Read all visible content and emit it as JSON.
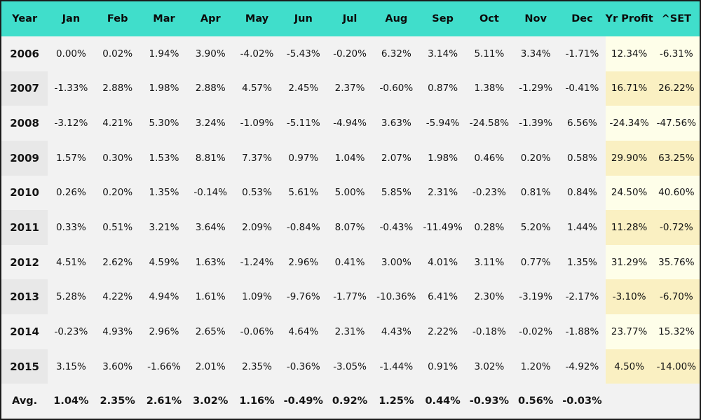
{
  "colors": {
    "header_bg": "#40DECB",
    "body_bg": "#F2F2F2",
    "year_shade": "#E8E8E8",
    "yellow_light": "#FEFEE9",
    "yellow_dark": "#FAF0C2",
    "border": "#1C1C1C",
    "text": "#141414"
  },
  "chart_data": {
    "type": "table",
    "columns": [
      "Year",
      "Jan",
      "Feb",
      "Mar",
      "Apr",
      "May",
      "Jun",
      "Jul",
      "Aug",
      "Sep",
      "Oct",
      "Nov",
      "Dec",
      "Yr Profit",
      "^SET"
    ],
    "rows": [
      {
        "label": "2006",
        "monthly": [
          "0.00%",
          "0.02%",
          "1.94%",
          "3.90%",
          "-4.02%",
          "-5.43%",
          "-0.20%",
          "6.32%",
          "3.14%",
          "5.11%",
          "3.34%",
          "-1.71%"
        ],
        "yr_profit": "12.34%",
        "set": "-6.31%"
      },
      {
        "label": "2007",
        "monthly": [
          "-1.33%",
          "2.88%",
          "1.98%",
          "2.88%",
          "4.57%",
          "2.45%",
          "2.37%",
          "-0.60%",
          "0.87%",
          "1.38%",
          "-1.29%",
          "-0.41%"
        ],
        "yr_profit": "16.71%",
        "set": "26.22%"
      },
      {
        "label": "2008",
        "monthly": [
          "-3.12%",
          "4.21%",
          "5.30%",
          "3.24%",
          "-1.09%",
          "-5.11%",
          "-4.94%",
          "3.63%",
          "-5.94%",
          "-24.58%",
          "-1.39%",
          "6.56%"
        ],
        "yr_profit": "-24.34%",
        "set": "-47.56%"
      },
      {
        "label": "2009",
        "monthly": [
          "1.57%",
          "0.30%",
          "1.53%",
          "8.81%",
          "7.37%",
          "0.97%",
          "1.04%",
          "2.07%",
          "1.98%",
          "0.46%",
          "0.20%",
          "0.58%"
        ],
        "yr_profit": "29.90%",
        "set": "63.25%"
      },
      {
        "label": "2010",
        "monthly": [
          "0.26%",
          "0.20%",
          "1.35%",
          "-0.14%",
          "0.53%",
          "5.61%",
          "5.00%",
          "5.85%",
          "2.31%",
          "-0.23%",
          "0.81%",
          "0.84%"
        ],
        "yr_profit": "24.50%",
        "set": "40.60%"
      },
      {
        "label": "2011",
        "monthly": [
          "0.33%",
          "0.51%",
          "3.21%",
          "3.64%",
          "2.09%",
          "-0.84%",
          "8.07%",
          "-0.43%",
          "-11.49%",
          "0.28%",
          "5.20%",
          "1.44%"
        ],
        "yr_profit": "11.28%",
        "set": "-0.72%"
      },
      {
        "label": "2012",
        "monthly": [
          "4.51%",
          "2.62%",
          "4.59%",
          "1.63%",
          "-1.24%",
          "2.96%",
          "0.41%",
          "3.00%",
          "4.01%",
          "3.11%",
          "0.77%",
          "1.35%"
        ],
        "yr_profit": "31.29%",
        "set": "35.76%"
      },
      {
        "label": "2013",
        "monthly": [
          "5.28%",
          "4.22%",
          "4.94%",
          "1.61%",
          "1.09%",
          "-9.76%",
          "-1.77%",
          "-10.36%",
          "6.41%",
          "2.30%",
          "-3.19%",
          "-2.17%"
        ],
        "yr_profit": "-3.10%",
        "set": "-6.70%"
      },
      {
        "label": "2014",
        "monthly": [
          "-0.23%",
          "4.93%",
          "2.96%",
          "2.65%",
          "-0.06%",
          "4.64%",
          "2.31%",
          "4.43%",
          "2.22%",
          "-0.18%",
          "-0.02%",
          "-1.88%"
        ],
        "yr_profit": "23.77%",
        "set": "15.32%"
      },
      {
        "label": "2015",
        "monthly": [
          "3.15%",
          "3.60%",
          "-1.66%",
          "2.01%",
          "2.35%",
          "-0.36%",
          "-3.05%",
          "-1.44%",
          "0.91%",
          "3.02%",
          "1.20%",
          "-4.92%"
        ],
        "yr_profit": "4.50%",
        "set": "-14.00%"
      },
      {
        "label": "Avg.",
        "monthly": [
          "1.04%",
          "2.35%",
          "2.61%",
          "3.02%",
          "1.16%",
          "-0.49%",
          "0.92%",
          "1.25%",
          "0.44%",
          "-0.93%",
          "0.56%",
          "-0.03%"
        ],
        "yr_profit": "",
        "set": ""
      }
    ]
  }
}
